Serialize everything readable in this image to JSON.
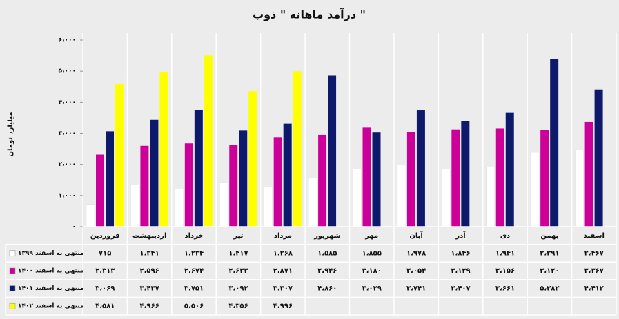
{
  "chart_data": {
    "type": "bar",
    "title": "درآمد ماهانه \" ذوب \"",
    "y_label": "میلیارد تومان",
    "categories": [
      "فروردین",
      "اردیبهشت",
      "خرداد",
      "تیر",
      "مرداد",
      "شهریور",
      "مهر",
      "آبان",
      "آذر",
      "دی",
      "بهمن",
      "اسفند"
    ],
    "series": [
      {
        "name": "منتهی به اسفند ۱۳۹۹",
        "color": "#ffffff",
        "values": [
          715,
          1341,
          1234,
          1417,
          1268,
          1585,
          1855,
          1978,
          1846,
          1941,
          2391,
          2467
        ],
        "value_labels": [
          "۷۱۵",
          "۱،۳۴۱",
          "۱،۲۳۴",
          "۱،۴۱۷",
          "۱،۲۶۸",
          "۱،۵۸۵",
          "۱،۸۵۵",
          "۱،۹۷۸",
          "۱،۸۴۶",
          "۱،۹۴۱",
          "۲،۳۹۱",
          "۲،۴۶۷"
        ]
      },
      {
        "name": "منتهی به اسفند ۱۴۰۰",
        "color": "#cc0099",
        "values": [
          2313,
          2596,
          2674,
          2633,
          2871,
          2946,
          3180,
          3054,
          3129,
          3156,
          3120,
          3367
        ],
        "value_labels": [
          "۲،۳۱۳",
          "۲،۵۹۶",
          "۲،۶۷۴",
          "۲،۶۳۳",
          "۲،۸۷۱",
          "۲،۹۴۶",
          "۳،۱۸۰",
          "۳،۰۵۴",
          "۳،۱۲۹",
          "۳،۱۵۶",
          "۳،۱۲۰",
          "۳،۳۶۷"
        ]
      },
      {
        "name": "منتهی به اسفند ۱۴۰۱",
        "color": "#0d1a6b",
        "values": [
          3069,
          3437,
          3751,
          3092,
          3307,
          4860,
          3029,
          3741,
          3407,
          3661,
          5382,
          4412
        ],
        "value_labels": [
          "۳،۰۶۹",
          "۳،۴۳۷",
          "۳،۷۵۱",
          "۳،۰۹۲",
          "۳،۳۰۷",
          "۴،۸۶۰",
          "۳،۰۲۹",
          "۳،۷۴۱",
          "۳،۴۰۷",
          "۳،۶۶۱",
          "۵،۳۸۲",
          "۴،۴۱۲"
        ]
      },
      {
        "name": "منتهی به اسفند ۱۴۰۲",
        "color": "#ffff00",
        "values": [
          4581,
          4966,
          5506,
          4356,
          4996,
          null,
          null,
          null,
          null,
          null,
          null,
          null
        ],
        "value_labels": [
          "۴،۵۸۱",
          "۴،۹۶۶",
          "۵،۵۰۶",
          "۴،۳۵۶",
          "۴،۹۹۶",
          null,
          null,
          null,
          null,
          null,
          null,
          null
        ]
      }
    ],
    "ylim": [
      0,
      6000
    ],
    "yticks": [
      {
        "value": 0,
        "label": "۰"
      },
      {
        "value": 1000,
        "label": "۱،۰۰۰"
      },
      {
        "value": 2000,
        "label": "۲،۰۰۰"
      },
      {
        "value": 3000,
        "label": "۳،۰۰۰"
      },
      {
        "value": 4000,
        "label": "۴،۰۰۰"
      },
      {
        "value": 5000,
        "label": "۵،۰۰۰"
      },
      {
        "value": 6000,
        "label": "۶،۰۰۰"
      }
    ],
    "grid": true
  }
}
